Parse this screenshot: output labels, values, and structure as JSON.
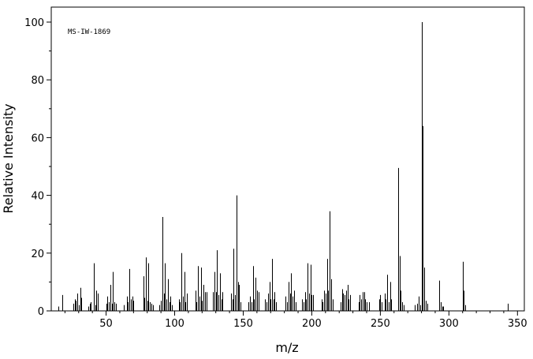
{
  "chart_data": {
    "type": "bar",
    "title": "",
    "annotation": "MS-IW-1869",
    "xlabel": "m/z",
    "ylabel": "Relative Intensity",
    "xlim": [
      10,
      355
    ],
    "ylim": [
      0,
      100
    ],
    "xticks": [
      50,
      100,
      150,
      200,
      250,
      300,
      350
    ],
    "yticks": [
      0,
      20,
      40,
      60,
      80,
      100
    ],
    "grid": false,
    "legend": "none",
    "bar_color": "#000000",
    "peaks": [
      {
        "mz": 15,
        "rel": 1.5
      },
      {
        "mz": 18,
        "rel": 5.5
      },
      {
        "mz": 26,
        "rel": 2.5
      },
      {
        "mz": 27,
        "rel": 4
      },
      {
        "mz": 28,
        "rel": 3.5
      },
      {
        "mz": 29,
        "rel": 6
      },
      {
        "mz": 30,
        "rel": 2
      },
      {
        "mz": 31,
        "rel": 8
      },
      {
        "mz": 32,
        "rel": 4.5
      },
      {
        "mz": 37,
        "rel": 1.5
      },
      {
        "mz": 38,
        "rel": 2.5
      },
      {
        "mz": 39,
        "rel": 3
      },
      {
        "mz": 41,
        "rel": 16.5
      },
      {
        "mz": 42,
        "rel": 2
      },
      {
        "mz": 43,
        "rel": 7
      },
      {
        "mz": 44,
        "rel": 6
      },
      {
        "mz": 50,
        "rel": 2.5
      },
      {
        "mz": 51,
        "rel": 5
      },
      {
        "mz": 52,
        "rel": 3
      },
      {
        "mz": 53,
        "rel": 9
      },
      {
        "mz": 54,
        "rel": 2.5
      },
      {
        "mz": 55,
        "rel": 13.5
      },
      {
        "mz": 56,
        "rel": 3
      },
      {
        "mz": 57,
        "rel": 2.5
      },
      {
        "mz": 63,
        "rel": 2
      },
      {
        "mz": 65,
        "rel": 5
      },
      {
        "mz": 66,
        "rel": 3
      },
      {
        "mz": 67,
        "rel": 14.5
      },
      {
        "mz": 68,
        "rel": 4
      },
      {
        "mz": 69,
        "rel": 5
      },
      {
        "mz": 70,
        "rel": 3.5
      },
      {
        "mz": 77,
        "rel": 12
      },
      {
        "mz": 78,
        "rel": 4.5
      },
      {
        "mz": 79,
        "rel": 18.5
      },
      {
        "mz": 80,
        "rel": 3.5
      },
      {
        "mz": 81,
        "rel": 16.5
      },
      {
        "mz": 82,
        "rel": 3
      },
      {
        "mz": 83,
        "rel": 2.5
      },
      {
        "mz": 84,
        "rel": 2
      },
      {
        "mz": 89,
        "rel": 2
      },
      {
        "mz": 90,
        "rel": 3.5
      },
      {
        "mz": 91,
        "rel": 32.5
      },
      {
        "mz": 92,
        "rel": 6
      },
      {
        "mz": 93,
        "rel": 16.5
      },
      {
        "mz": 94,
        "rel": 4
      },
      {
        "mz": 95,
        "rel": 11
      },
      {
        "mz": 96,
        "rel": 3
      },
      {
        "mz": 97,
        "rel": 5
      },
      {
        "mz": 98,
        "rel": 2
      },
      {
        "mz": 103,
        "rel": 4
      },
      {
        "mz": 104,
        "rel": 3
      },
      {
        "mz": 105,
        "rel": 20
      },
      {
        "mz": 106,
        "rel": 5
      },
      {
        "mz": 107,
        "rel": 13.5
      },
      {
        "mz": 108,
        "rel": 3
      },
      {
        "mz": 109,
        "rel": 6
      },
      {
        "mz": 115,
        "rel": 7
      },
      {
        "mz": 116,
        "rel": 3
      },
      {
        "mz": 117,
        "rel": 15.5
      },
      {
        "mz": 118,
        "rel": 5
      },
      {
        "mz": 119,
        "rel": 15
      },
      {
        "mz": 120,
        "rel": 3.5
      },
      {
        "mz": 121,
        "rel": 9
      },
      {
        "mz": 122,
        "rel": 6.5
      },
      {
        "mz": 123,
        "rel": 6.5
      },
      {
        "mz": 128,
        "rel": 6.5
      },
      {
        "mz": 129,
        "rel": 13.5
      },
      {
        "mz": 130,
        "rel": 6.5
      },
      {
        "mz": 131,
        "rel": 21
      },
      {
        "mz": 132,
        "rel": 5.5
      },
      {
        "mz": 133,
        "rel": 13
      },
      {
        "mz": 134,
        "rel": 4
      },
      {
        "mz": 135,
        "rel": 6.5
      },
      {
        "mz": 141,
        "rel": 6
      },
      {
        "mz": 142,
        "rel": 4
      },
      {
        "mz": 143,
        "rel": 21.5
      },
      {
        "mz": 144,
        "rel": 5.5
      },
      {
        "mz": 145,
        "rel": 40
      },
      {
        "mz": 146,
        "rel": 10
      },
      {
        "mz": 147,
        "rel": 9
      },
      {
        "mz": 148,
        "rel": 3
      },
      {
        "mz": 154,
        "rel": 3
      },
      {
        "mz": 155,
        "rel": 5
      },
      {
        "mz": 156,
        "rel": 3
      },
      {
        "mz": 157,
        "rel": 15.5
      },
      {
        "mz": 158,
        "rel": 4
      },
      {
        "mz": 159,
        "rel": 11.5
      },
      {
        "mz": 160,
        "rel": 7
      },
      {
        "mz": 161,
        "rel": 6.5
      },
      {
        "mz": 166,
        "rel": 4
      },
      {
        "mz": 167,
        "rel": 3
      },
      {
        "mz": 168,
        "rel": 6
      },
      {
        "mz": 169,
        "rel": 10
      },
      {
        "mz": 170,
        "rel": 4
      },
      {
        "mz": 171,
        "rel": 18
      },
      {
        "mz": 172,
        "rel": 4
      },
      {
        "mz": 173,
        "rel": 6.5
      },
      {
        "mz": 174,
        "rel": 3
      },
      {
        "mz": 181,
        "rel": 5
      },
      {
        "mz": 182,
        "rel": 3
      },
      {
        "mz": 183,
        "rel": 10
      },
      {
        "mz": 184,
        "rel": 6
      },
      {
        "mz": 185,
        "rel": 13
      },
      {
        "mz": 186,
        "rel": 5
      },
      {
        "mz": 187,
        "rel": 7
      },
      {
        "mz": 188,
        "rel": 3
      },
      {
        "mz": 193,
        "rel": 4
      },
      {
        "mz": 194,
        "rel": 3
      },
      {
        "mz": 195,
        "rel": 6.5
      },
      {
        "mz": 196,
        "rel": 4
      },
      {
        "mz": 197,
        "rel": 16.5
      },
      {
        "mz": 198,
        "rel": 6
      },
      {
        "mz": 199,
        "rel": 16
      },
      {
        "mz": 200,
        "rel": 5.5
      },
      {
        "mz": 201,
        "rel": 5.5
      },
      {
        "mz": 207,
        "rel": 4
      },
      {
        "mz": 208,
        "rel": 3
      },
      {
        "mz": 209,
        "rel": 7
      },
      {
        "mz": 210,
        "rel": 6
      },
      {
        "mz": 211,
        "rel": 18
      },
      {
        "mz": 212,
        "rel": 7
      },
      {
        "mz": 213,
        "rel": 34.5
      },
      {
        "mz": 214,
        "rel": 11
      },
      {
        "mz": 215,
        "rel": 4
      },
      {
        "mz": 221,
        "rel": 3
      },
      {
        "mz": 222,
        "rel": 7.5
      },
      {
        "mz": 223,
        "rel": 6
      },
      {
        "mz": 224,
        "rel": 5.5
      },
      {
        "mz": 225,
        "rel": 7
      },
      {
        "mz": 226,
        "rel": 9
      },
      {
        "mz": 227,
        "rel": 4
      },
      {
        "mz": 228,
        "rel": 5.5
      },
      {
        "mz": 234,
        "rel": 3
      },
      {
        "mz": 235,
        "rel": 5.5
      },
      {
        "mz": 236,
        "rel": 4
      },
      {
        "mz": 237,
        "rel": 6.5
      },
      {
        "mz": 238,
        "rel": 6.5
      },
      {
        "mz": 239,
        "rel": 4
      },
      {
        "mz": 240,
        "rel": 3
      },
      {
        "mz": 242,
        "rel": 3
      },
      {
        "mz": 249,
        "rel": 4
      },
      {
        "mz": 250,
        "rel": 5.5
      },
      {
        "mz": 251,
        "rel": 3
      },
      {
        "mz": 253,
        "rel": 6
      },
      {
        "mz": 254,
        "rel": 4
      },
      {
        "mz": 255,
        "rel": 12.5
      },
      {
        "mz": 256,
        "rel": 3
      },
      {
        "mz": 257,
        "rel": 10
      },
      {
        "mz": 258,
        "rel": 4
      },
      {
        "mz": 263,
        "rel": 49.5
      },
      {
        "mz": 264,
        "rel": 19
      },
      {
        "mz": 265,
        "rel": 7
      },
      {
        "mz": 266,
        "rel": 3
      },
      {
        "mz": 267,
        "rel": 2
      },
      {
        "mz": 275,
        "rel": 2
      },
      {
        "mz": 277,
        "rel": 2.5
      },
      {
        "mz": 278,
        "rel": 5
      },
      {
        "mz": 279,
        "rel": 2
      },
      {
        "mz": 280,
        "rel": 100
      },
      {
        "mz": 281,
        "rel": 64
      },
      {
        "mz": 282,
        "rel": 15
      },
      {
        "mz": 283,
        "rel": 3.5
      },
      {
        "mz": 284,
        "rel": 2.5
      },
      {
        "mz": 293,
        "rel": 10.5
      },
      {
        "mz": 294,
        "rel": 3
      },
      {
        "mz": 295,
        "rel": 1.5
      },
      {
        "mz": 296,
        "rel": 1.5
      },
      {
        "mz": 310,
        "rel": 17
      },
      {
        "mz": 311,
        "rel": 7
      },
      {
        "mz": 312,
        "rel": 2
      },
      {
        "mz": 343,
        "rel": 2.5
      }
    ]
  }
}
